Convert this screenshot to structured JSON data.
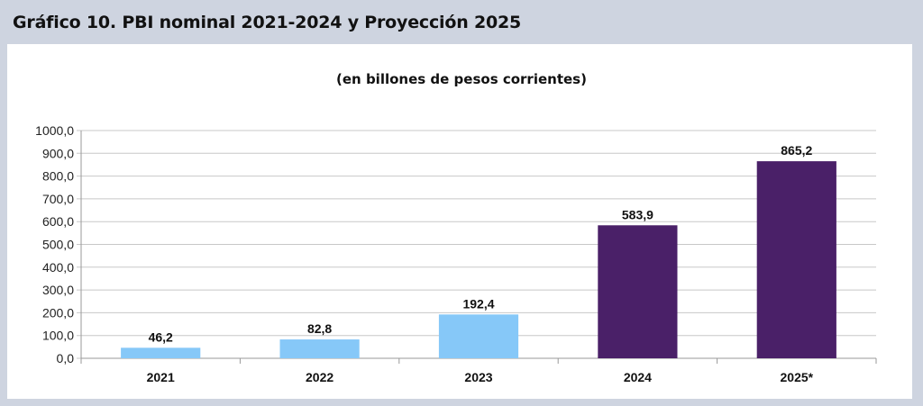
{
  "header": {
    "title": "Gráfico 10. PBI nominal 2021-2024 y Proyección 2025"
  },
  "chart_data": {
    "type": "bar",
    "title": "",
    "subtitle": "(en billones de pesos corrientes)",
    "xlabel": "",
    "ylabel": "",
    "categories": [
      "2021",
      "2022",
      "2023",
      "2024",
      "2025*"
    ],
    "values": [
      46.2,
      82.8,
      192.4,
      583.9,
      865.2
    ],
    "value_labels": [
      "46,2",
      "82,8",
      "192,4",
      "583,9",
      "865,2"
    ],
    "bar_colors": [
      "#86c8f8",
      "#86c8f8",
      "#86c8f8",
      "#4a2068",
      "#4a2068"
    ],
    "ylim": [
      0,
      1000
    ],
    "yticks": [
      0,
      100,
      200,
      300,
      400,
      500,
      600,
      700,
      800,
      900,
      1000
    ],
    "ytick_labels": [
      "0,0",
      "100,0",
      "200,0",
      "300,0",
      "400,0",
      "500,0",
      "600,0",
      "700,0",
      "800,0",
      "900,0",
      "1000,0"
    ],
    "grid": true,
    "legend": "none"
  }
}
